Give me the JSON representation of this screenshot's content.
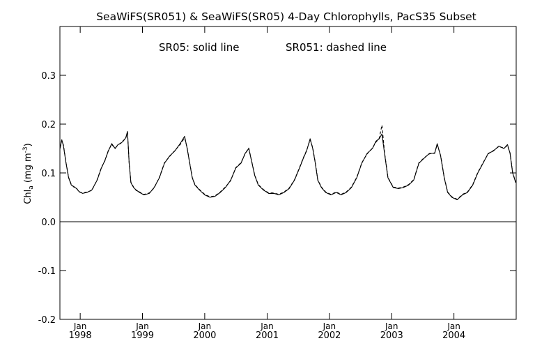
{
  "chart_data": {
    "type": "line",
    "title": "SeaWiFS(SR051) & SeaWiFS(SR05) 4-Day Chlorophylls, PacS35 Subset",
    "annotation_solid": "SR05: solid line",
    "annotation_dashed": "SR051: dashed line",
    "ylabel": {
      "prefix": "Chl",
      "subscript": "a",
      "units_open": " (mg m",
      "units_superscript": "-3",
      "units_close": ")"
    },
    "ylim": [
      -0.2,
      0.4
    ],
    "yticks": [
      {
        "value": -0.2,
        "label": "-0.2"
      },
      {
        "value": -0.1,
        "label": "-0.1"
      },
      {
        "value": 0.0,
        "label": "0.0"
      },
      {
        "value": 0.1,
        "label": "0.1"
      },
      {
        "value": 0.2,
        "label": "0.2"
      },
      {
        "value": 0.3,
        "label": "0.3"
      }
    ],
    "xlim": [
      "1997-09-04",
      "2004-12-31"
    ],
    "xticks": [
      {
        "date": "1998-01-01",
        "month": "Jan",
        "year": "1998"
      },
      {
        "date": "1999-01-01",
        "month": "Jan",
        "year": "1999"
      },
      {
        "date": "2000-01-01",
        "month": "Jan",
        "year": "2000"
      },
      {
        "date": "2001-01-01",
        "month": "Jan",
        "year": "2001"
      },
      {
        "date": "2002-01-01",
        "month": "Jan",
        "year": "2002"
      },
      {
        "date": "2003-01-01",
        "month": "Jan",
        "year": "2003"
      },
      {
        "date": "2004-01-01",
        "month": "Jan",
        "year": "2004"
      }
    ],
    "reference_line_y": 0.0,
    "grid": false,
    "series": [
      {
        "name": "SR05",
        "style": "solid",
        "color": "#000000",
        "x": [
          "1997-09-05",
          "1997-09-15",
          "1997-09-25",
          "1997-10-10",
          "1997-10-25",
          "1997-11-10",
          "1997-11-25",
          "1997-12-10",
          "1997-12-25",
          "1998-01-15",
          "1998-02-10",
          "1998-03-10",
          "1998-04-10",
          "1998-05-05",
          "1998-05-25",
          "1998-06-15",
          "1998-07-05",
          "1998-07-25",
          "1998-08-10",
          "1998-08-25",
          "1998-09-10",
          "1998-09-25",
          "1998-10-05",
          "1998-10-15",
          "1998-10-25",
          "1998-11-10",
          "1998-11-25",
          "1998-12-15",
          "1999-01-10",
          "1999-02-10",
          "1999-03-10",
          "1999-04-10",
          "1999-05-10",
          "1999-06-10",
          "1999-07-10",
          "1999-08-10",
          "1999-09-05",
          "1999-09-20",
          "1999-10-05",
          "1999-10-20",
          "1999-11-05",
          "1999-12-01",
          "2000-01-01",
          "2000-02-01",
          "2000-03-01",
          "2000-04-01",
          "2000-05-01",
          "2000-06-01",
          "2000-07-01",
          "2000-08-01",
          "2000-08-25",
          "2000-09-15",
          "2000-10-01",
          "2000-10-20",
          "2000-11-10",
          "2000-12-10",
          "2001-01-10",
          "2001-02-10",
          "2001-03-10",
          "2001-04-10",
          "2001-05-10",
          "2001-06-10",
          "2001-07-10",
          "2001-08-01",
          "2001-08-20",
          "2001-09-10",
          "2001-09-25",
          "2001-10-10",
          "2001-10-25",
          "2001-11-15",
          "2001-12-10",
          "2002-01-10",
          "2002-02-10",
          "2002-03-10",
          "2002-04-10",
          "2002-05-10",
          "2002-06-10",
          "2002-07-10",
          "2002-08-10",
          "2002-09-10",
          "2002-10-01",
          "2002-10-20",
          "2002-11-05",
          "2002-11-20",
          "2002-12-10",
          "2003-01-10",
          "2003-02-10",
          "2003-03-10",
          "2003-04-10",
          "2003-05-10",
          "2003-06-10",
          "2003-07-10",
          "2003-08-10",
          "2003-09-10",
          "2003-09-25",
          "2003-10-15",
          "2003-11-05",
          "2003-11-25",
          "2003-12-20",
          "2004-01-20",
          "2004-02-20",
          "2004-03-20",
          "2004-04-20",
          "2004-05-20",
          "2004-06-20",
          "2004-07-20",
          "2004-08-20",
          "2004-09-20",
          "2004-10-20",
          "2004-11-10",
          "2004-11-25",
          "2004-12-10",
          "2004-12-28"
        ],
        "values": [
          0.15,
          0.168,
          0.155,
          0.12,
          0.09,
          0.075,
          0.072,
          0.068,
          0.062,
          0.058,
          0.06,
          0.065,
          0.085,
          0.11,
          0.125,
          0.145,
          0.16,
          0.15,
          0.158,
          0.16,
          0.165,
          0.172,
          0.185,
          0.12,
          0.08,
          0.07,
          0.065,
          0.06,
          0.055,
          0.058,
          0.07,
          0.09,
          0.12,
          0.135,
          0.145,
          0.16,
          0.175,
          0.15,
          0.12,
          0.09,
          0.075,
          0.065,
          0.055,
          0.05,
          0.052,
          0.06,
          0.07,
          0.085,
          0.11,
          0.12,
          0.14,
          0.15,
          0.125,
          0.095,
          0.075,
          0.065,
          0.058,
          0.058,
          0.055,
          0.06,
          0.068,
          0.085,
          0.11,
          0.13,
          0.145,
          0.17,
          0.15,
          0.12,
          0.085,
          0.07,
          0.06,
          0.055,
          0.06,
          0.055,
          0.06,
          0.07,
          0.09,
          0.12,
          0.14,
          0.15,
          0.165,
          0.17,
          0.18,
          0.14,
          0.09,
          0.07,
          0.068,
          0.07,
          0.075,
          0.085,
          0.12,
          0.13,
          0.14,
          0.14,
          0.16,
          0.135,
          0.09,
          0.06,
          0.05,
          0.045,
          0.055,
          0.06,
          0.075,
          0.1,
          0.12,
          0.14,
          0.145,
          0.155,
          0.15,
          0.158,
          0.14,
          0.1,
          0.08
        ]
      },
      {
        "name": "SR051",
        "style": "dashed",
        "color": "#000000",
        "x": [
          "1997-09-05",
          "1997-09-15",
          "1997-09-25",
          "1997-10-10",
          "1997-10-25",
          "1997-11-10",
          "1997-11-25",
          "1997-12-10",
          "1997-12-25",
          "1998-01-15",
          "1998-02-10",
          "1998-03-10",
          "1998-04-10",
          "1998-05-05",
          "1998-05-25",
          "1998-06-15",
          "1998-07-05",
          "1998-07-25",
          "1998-08-10",
          "1998-08-25",
          "1998-09-10",
          "1998-09-25",
          "1998-10-05",
          "1998-10-15",
          "1998-10-25",
          "1998-11-10",
          "1998-11-25",
          "1998-12-15",
          "1999-01-10",
          "1999-02-10",
          "1999-03-10",
          "1999-04-10",
          "1999-05-10",
          "1999-06-10",
          "1999-07-10",
          "1999-08-10",
          "1999-09-05",
          "1999-09-20",
          "1999-10-05",
          "1999-10-20",
          "1999-11-05",
          "1999-12-01",
          "2000-01-01",
          "2000-02-01",
          "2000-03-01",
          "2000-04-01",
          "2000-05-01",
          "2000-06-01",
          "2000-07-01",
          "2000-08-01",
          "2000-08-25",
          "2000-09-15",
          "2000-10-01",
          "2000-10-20",
          "2000-11-10",
          "2000-12-10",
          "2001-01-10",
          "2001-02-10",
          "2001-03-10",
          "2001-04-10",
          "2001-05-10",
          "2001-06-10",
          "2001-07-10",
          "2001-08-01",
          "2001-08-20",
          "2001-09-10",
          "2001-09-25",
          "2001-10-10",
          "2001-10-25",
          "2001-11-15",
          "2001-12-10",
          "2002-01-10",
          "2002-02-10",
          "2002-03-10",
          "2002-04-10",
          "2002-05-10",
          "2002-06-10",
          "2002-07-10",
          "2002-08-10",
          "2002-09-10",
          "2002-10-01",
          "2002-10-20",
          "2002-11-05",
          "2002-11-20",
          "2002-12-10",
          "2003-01-10",
          "2003-02-10",
          "2003-03-10",
          "2003-04-10",
          "2003-05-10",
          "2003-06-10",
          "2003-07-10",
          "2003-08-10",
          "2003-09-10",
          "2003-09-25",
          "2003-10-15",
          "2003-11-05",
          "2003-11-25",
          "2003-12-20",
          "2004-01-20",
          "2004-02-20",
          "2004-03-20",
          "2004-04-20",
          "2004-05-20",
          "2004-06-20",
          "2004-07-20",
          "2004-08-20",
          "2004-09-20",
          "2004-10-20",
          "2004-11-10",
          "2004-11-25",
          "2004-12-10",
          "2004-12-28"
        ],
        "values": [
          0.152,
          0.166,
          0.157,
          0.121,
          0.091,
          0.076,
          0.071,
          0.069,
          0.061,
          0.059,
          0.061,
          0.064,
          0.086,
          0.111,
          0.124,
          0.146,
          0.158,
          0.151,
          0.157,
          0.161,
          0.166,
          0.171,
          0.183,
          0.121,
          0.081,
          0.071,
          0.064,
          0.061,
          0.056,
          0.059,
          0.069,
          0.091,
          0.121,
          0.134,
          0.146,
          0.158,
          0.172,
          0.151,
          0.121,
          0.091,
          0.076,
          0.066,
          0.056,
          0.051,
          0.053,
          0.061,
          0.071,
          0.084,
          0.111,
          0.121,
          0.139,
          0.151,
          0.126,
          0.096,
          0.076,
          0.066,
          0.059,
          0.059,
          0.056,
          0.061,
          0.069,
          0.086,
          0.111,
          0.131,
          0.146,
          0.168,
          0.152,
          0.121,
          0.086,
          0.071,
          0.061,
          0.056,
          0.061,
          0.056,
          0.061,
          0.071,
          0.091,
          0.121,
          0.139,
          0.151,
          0.163,
          0.171,
          0.198,
          0.142,
          0.091,
          0.071,
          0.069,
          0.071,
          0.076,
          0.086,
          0.121,
          0.131,
          0.139,
          0.141,
          0.158,
          0.136,
          0.091,
          0.061,
          0.051,
          0.046,
          0.056,
          0.061,
          0.076,
          0.101,
          0.121,
          0.139,
          0.146,
          0.154,
          0.151,
          0.156,
          0.141,
          0.101,
          0.081
        ]
      }
    ]
  }
}
